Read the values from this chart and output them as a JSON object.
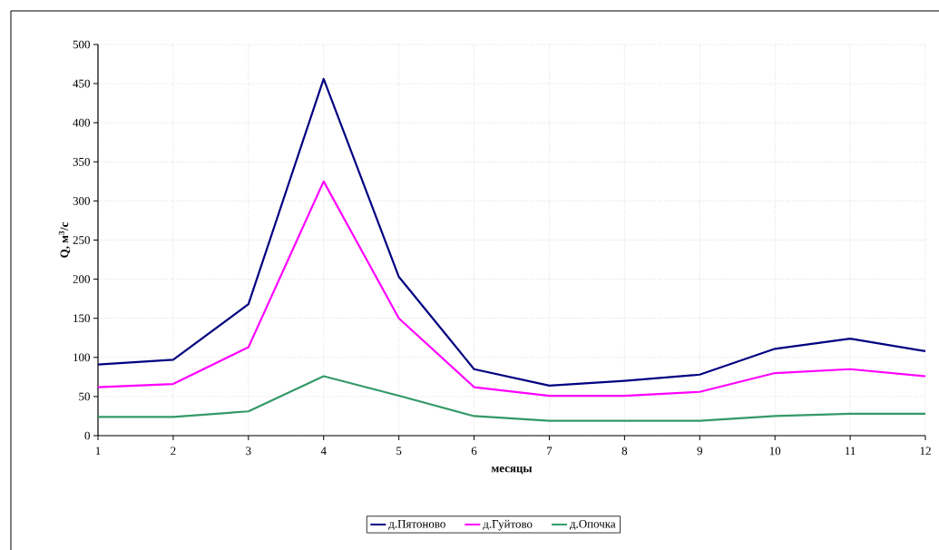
{
  "chart_data": {
    "type": "line",
    "xlabel": "месяцы",
    "ylabel": "Q, м$^{3}$/с",
    "x": [
      1,
      2,
      3,
      4,
      5,
      6,
      7,
      8,
      9,
      10,
      11,
      12
    ],
    "series": [
      {
        "name": "д.Пятоново",
        "color": "#000080",
        "values": [
          91,
          97,
          168,
          456,
          203,
          85,
          64,
          70,
          78,
          111,
          124,
          108
        ]
      },
      {
        "name": "д.Гуйтово",
        "color": "#ff00ff",
        "values": [
          62,
          66,
          113,
          325,
          150,
          62,
          51,
          51,
          56,
          80,
          85,
          76
        ]
      },
      {
        "name": "д.Опочка",
        "color": "#339966",
        "values": [
          24,
          24,
          31,
          76,
          51,
          25,
          19,
          19,
          19,
          25,
          28,
          28
        ]
      }
    ],
    "xlim": [
      1,
      12
    ],
    "xticks": [
      1,
      2,
      3,
      4,
      5,
      6,
      7,
      8,
      9,
      10,
      11,
      12
    ],
    "ylim": [
      0,
      500
    ],
    "yticks": [
      0,
      50,
      100,
      150,
      200,
      250,
      300,
      350,
      400,
      450,
      500
    ],
    "grid": true,
    "legend": "bottom"
  }
}
